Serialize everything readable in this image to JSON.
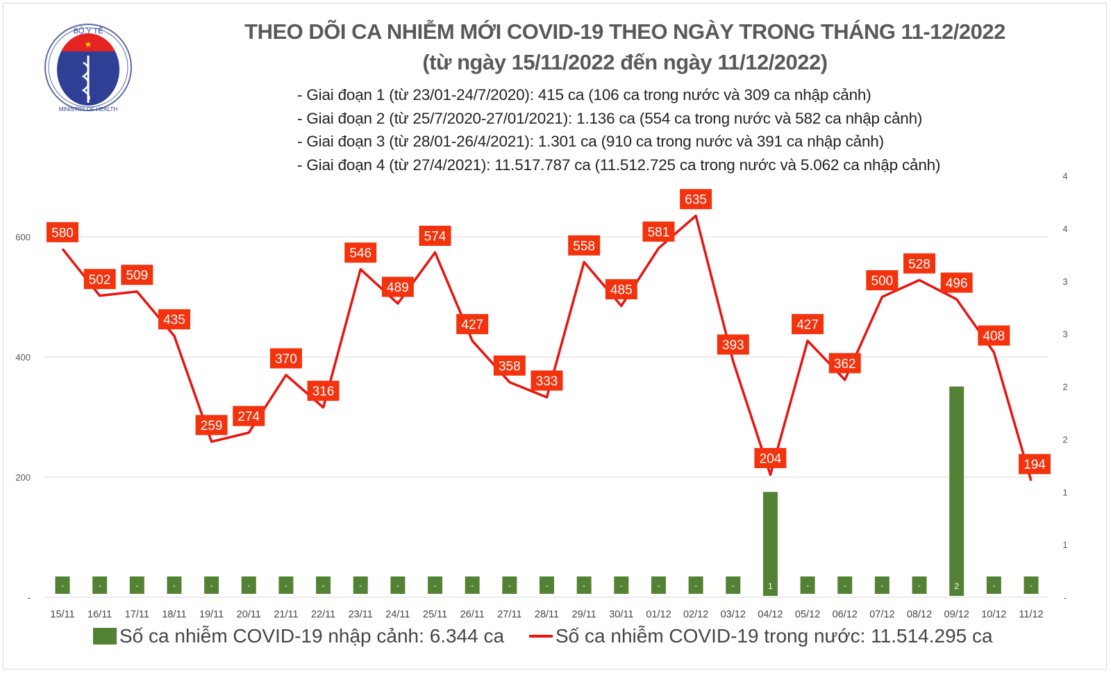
{
  "logo": {
    "top_text": "BỘ Y TẾ",
    "bottom_text": "MINISTRY OF HEALTH"
  },
  "title_line1": "THEO DÕI CA NHIỄM MỚI COVID-19 THEO NGÀY TRONG THÁNG 11-12/2022",
  "title_line2": "(từ ngày 15/11/2022 đến ngày 11/12/2022)",
  "stages": [
    "- Giai đoạn 1 (từ 23/01-24/7/2020): 415 ca (106 ca trong nước và 309 ca nhập cảnh)",
    "- Giai đoạn 2 (từ 25/7/2020-27/01/2021): 1.136 ca (554 ca trong nước và 582 ca nhập cảnh)",
    "- Giai đoạn 3 (từ 28/01-26/4/2021): 1.301 ca (910 ca trong nước và 391 ca nhập cảnh)",
    "- Giai đoạn 4 (từ 27/4/2021): 11.517.787 ca (11.512.725 ca trong nước và 5.062 ca nhập cảnh)"
  ],
  "legend": {
    "bar": "Số ca nhiễm COVID-19 nhập cảnh: 6.344 ca",
    "line": "Số ca nhiễm COVID-19 trong nước: 11.514.295 ca"
  },
  "colors": {
    "bar": "#548235",
    "line": "#e8140f",
    "label_bg": "#f2330d",
    "title": "#595959"
  },
  "chart_data": {
    "type": "bar+line",
    "categories": [
      "15/11",
      "16/11",
      "17/11",
      "18/11",
      "19/11",
      "20/11",
      "21/11",
      "22/11",
      "23/11",
      "24/11",
      "25/11",
      "26/11",
      "27/11",
      "28/11",
      "29/11",
      "30/11",
      "01/12",
      "02/12",
      "03/12",
      "04/12",
      "05/12",
      "06/12",
      "07/12",
      "08/12",
      "09/12",
      "10/12",
      "11/12"
    ],
    "series": [
      {
        "name": "Số ca nhiễm COVID-19 nhập cảnh: 6.344 ca",
        "type": "bar",
        "axis": "right",
        "values": [
          0,
          0,
          0,
          0,
          0,
          0,
          0,
          0,
          0,
          0,
          0,
          0,
          0,
          0,
          0,
          0,
          0,
          0,
          0,
          1,
          0,
          0,
          0,
          0,
          2,
          0,
          0
        ]
      },
      {
        "name": "Số ca nhiễm COVID-19 trong nước: 11.514.295 ca",
        "type": "line",
        "axis": "left",
        "values": [
          580,
          502,
          509,
          435,
          259,
          274,
          370,
          316,
          546,
          489,
          574,
          427,
          358,
          333,
          558,
          485,
          581,
          635,
          393,
          204,
          427,
          362,
          500,
          528,
          496,
          408,
          194
        ]
      }
    ],
    "left_axis": {
      "ticks": [
        0,
        200,
        400,
        600
      ],
      "tick_labels": [
        "-",
        "200",
        "400",
        "600"
      ],
      "range": [
        0,
        700
      ]
    },
    "right_axis": {
      "ticks": [
        0,
        0.5,
        1,
        1.5,
        2,
        2.5,
        3,
        3.5,
        4
      ],
      "tick_labels": [
        "-",
        "1",
        "1",
        "2",
        "2",
        "3",
        "3",
        "4",
        "4"
      ],
      "range": [
        0,
        4
      ]
    },
    "zero_label": "-",
    "grid": true,
    "legend_position": "bottom"
  }
}
